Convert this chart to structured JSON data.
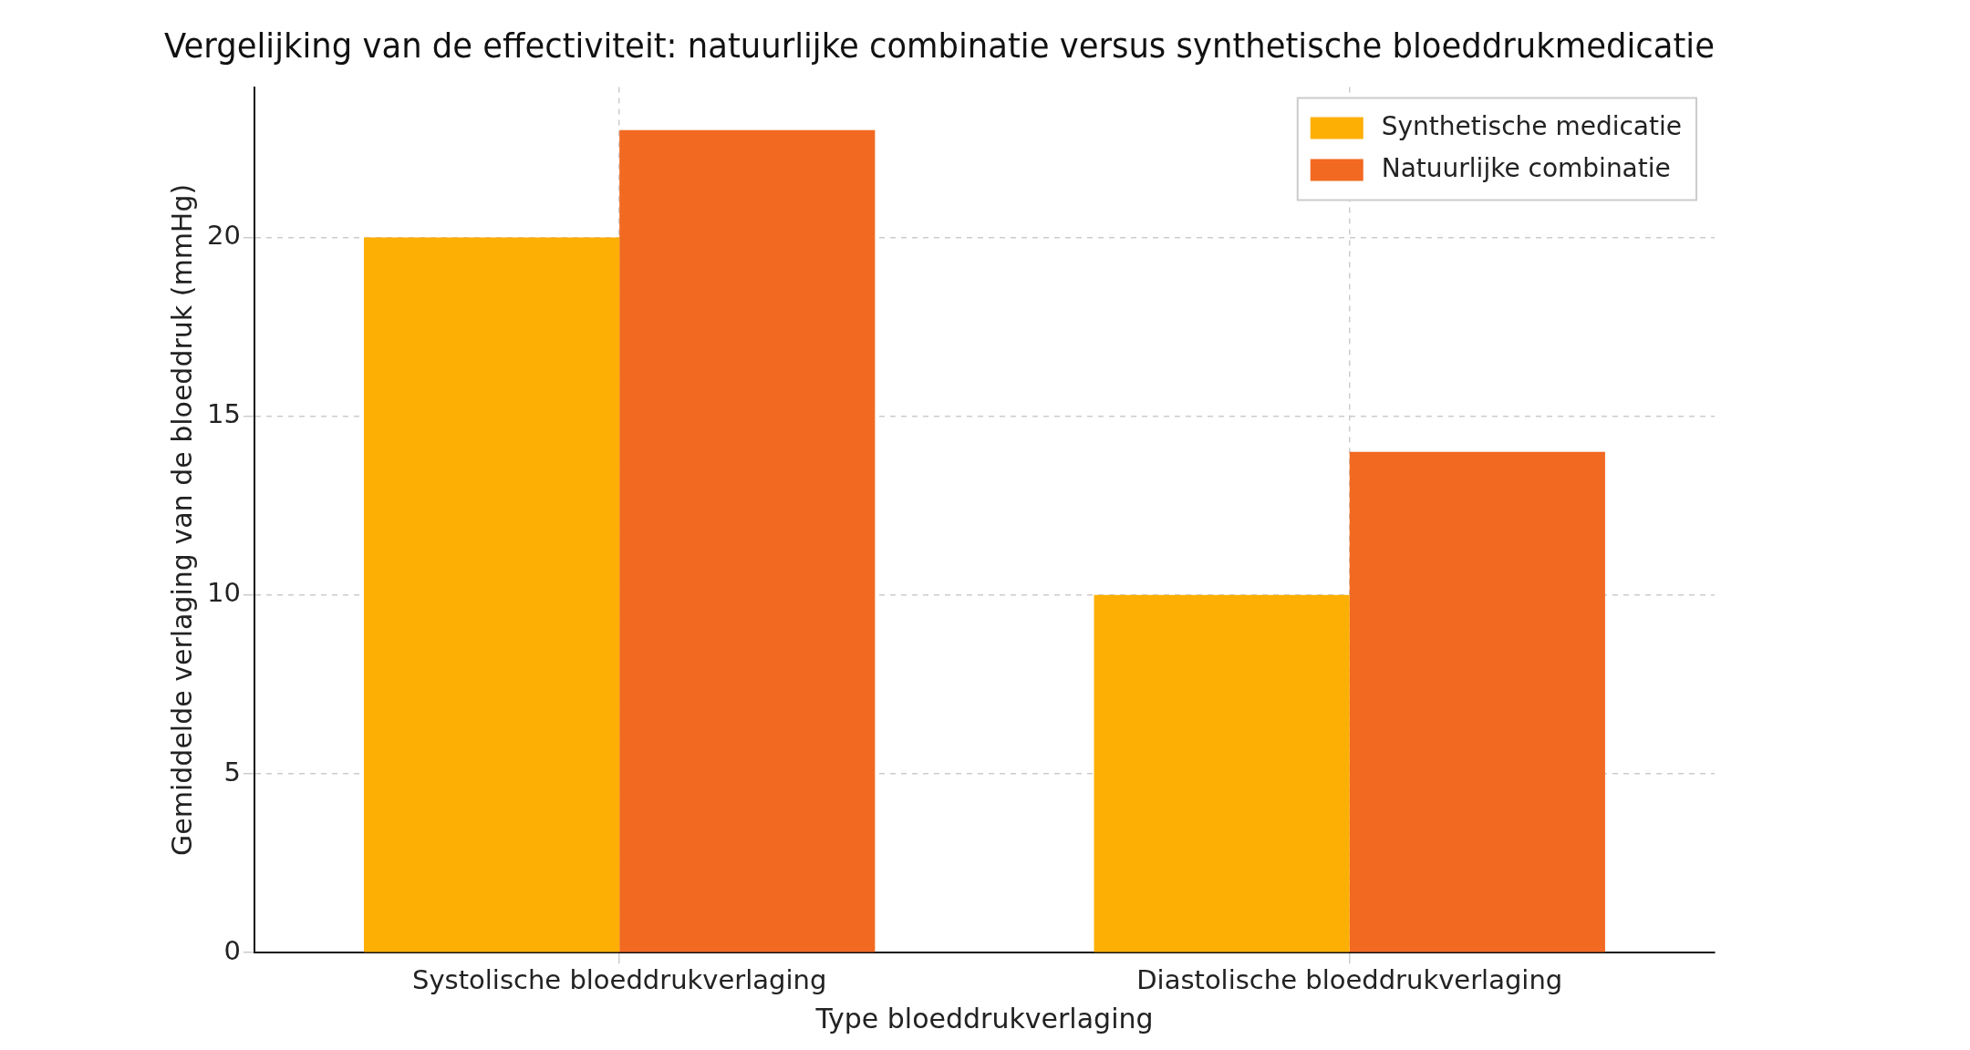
{
  "chart_data": {
    "type": "bar",
    "title": "Vergelijking van de effectiviteit: natuurlijke combinatie versus synthetische bloeddrukmedicatie",
    "xlabel": "Type bloeddrukverlaging",
    "ylabel": "Gemiddelde verlaging van de bloeddruk (mmHg)",
    "categories": [
      "Systolische bloeddrukverlaging",
      "Diastolische bloeddrukverlaging"
    ],
    "series": [
      {
        "name": "Synthetische medicatie",
        "color": "#fdaf03",
        "values": [
          20,
          10
        ]
      },
      {
        "name": "Natuurlijke combinatie",
        "color": "#f26922",
        "values": [
          23,
          14
        ]
      }
    ],
    "ylim": [
      0,
      24.2
    ],
    "yticks": [
      0,
      5,
      10,
      15,
      20
    ],
    "grid": true,
    "legend": "top right"
  }
}
